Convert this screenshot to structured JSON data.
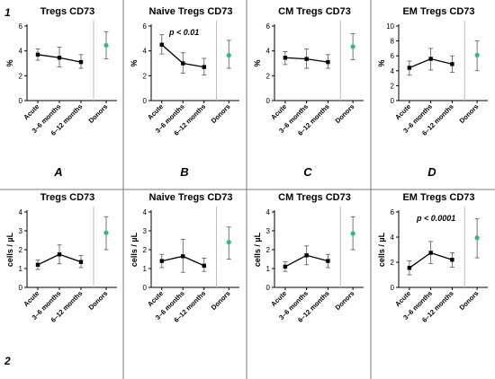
{
  "row_labels": [
    "1",
    "2"
  ],
  "col_labels": [
    "A",
    "B",
    "C",
    "D"
  ],
  "colors": {
    "series": "#000000",
    "donors": "#2fb88a",
    "divider": "#bdbdbd",
    "separator": "#7a7a7a"
  },
  "chart_data": [
    {
      "type": "scatter",
      "title": "Tregs CD73",
      "ylabel": "%",
      "ylim": [
        0,
        6
      ],
      "yticks": [
        0,
        2,
        4,
        6
      ],
      "categories": [
        "Acute",
        "3–6 months",
        "6–12 months",
        "Donors"
      ],
      "series": [
        {
          "values": [
            3.7,
            3.45,
            3.1
          ],
          "err_low": [
            3.25,
            2.7,
            2.6
          ],
          "err_high": [
            4.15,
            4.3,
            3.7
          ]
        },
        {
          "values": [
            4.45
          ],
          "err_low": [
            3.35
          ],
          "err_high": [
            5.55
          ]
        }
      ],
      "annotation": ""
    },
    {
      "type": "scatter",
      "title": "Naive Tregs CD73",
      "ylabel": "%",
      "ylim": [
        0,
        6
      ],
      "yticks": [
        0,
        2,
        4,
        6
      ],
      "categories": [
        "Acute",
        "3–6 months",
        "6–12 months",
        "Donors"
      ],
      "series": [
        {
          "values": [
            4.5,
            3.0,
            2.7
          ],
          "err_low": [
            3.75,
            2.2,
            2.05
          ],
          "err_high": [
            5.3,
            3.85,
            3.4
          ]
        },
        {
          "values": [
            3.65
          ],
          "err_low": [
            2.6
          ],
          "err_high": [
            4.85
          ]
        }
      ],
      "annotation": "p < 0.01"
    },
    {
      "type": "scatter",
      "title": "CM Tregs CD73",
      "ylabel": "%",
      "ylim": [
        0,
        6
      ],
      "yticks": [
        0,
        2,
        4,
        6
      ],
      "categories": [
        "Acute",
        "3–6 months",
        "6–12 months",
        "Donors"
      ],
      "series": [
        {
          "values": [
            3.45,
            3.35,
            3.1
          ],
          "err_low": [
            2.9,
            2.6,
            2.6
          ],
          "err_high": [
            3.95,
            4.15,
            3.7
          ]
        },
        {
          "values": [
            4.35
          ],
          "err_low": [
            3.3
          ],
          "err_high": [
            5.4
          ]
        }
      ],
      "annotation": ""
    },
    {
      "type": "scatter",
      "title": "EM Tregs CD73",
      "ylabel": "%",
      "ylim": [
        0,
        10
      ],
      "yticks": [
        0,
        2,
        4,
        6,
        8,
        10
      ],
      "categories": [
        "Acute",
        "3–6 months",
        "6–12 months",
        "Donors"
      ],
      "series": [
        {
          "values": [
            4.4,
            5.6,
            4.9
          ],
          "err_low": [
            3.4,
            4.1,
            3.8
          ],
          "err_high": [
            5.3,
            7.0,
            6.0
          ]
        },
        {
          "values": [
            6.1
          ],
          "err_low": [
            4.0
          ],
          "err_high": [
            8.0
          ]
        }
      ],
      "annotation": ""
    },
    {
      "type": "scatter",
      "title": "Tregs CD73",
      "ylabel": "cells / µL",
      "ylim": [
        0,
        4
      ],
      "yticks": [
        0,
        1,
        2,
        3,
        4
      ],
      "categories": [
        "Acute",
        "3–6 months",
        "6–12 months",
        "Donors"
      ],
      "series": [
        {
          "values": [
            1.2,
            1.75,
            1.35
          ],
          "err_low": [
            0.95,
            1.25,
            1.05
          ],
          "err_high": [
            1.45,
            2.25,
            1.7
          ]
        },
        {
          "values": [
            2.9
          ],
          "err_low": [
            2.0
          ],
          "err_high": [
            3.75
          ]
        }
      ],
      "annotation": ""
    },
    {
      "type": "scatter",
      "title": "Naive Tregs CD73",
      "ylabel": "cells / µL",
      "ylim": [
        0,
        4
      ],
      "yticks": [
        0,
        1,
        2,
        3,
        4
      ],
      "categories": [
        "Acute",
        "3–6 months",
        "6–12 months",
        "Donors"
      ],
      "series": [
        {
          "values": [
            1.4,
            1.65,
            1.15
          ],
          "err_low": [
            1.05,
            0.8,
            0.85
          ],
          "err_high": [
            1.75,
            2.55,
            1.55
          ]
        },
        {
          "values": [
            2.4
          ],
          "err_low": [
            1.5
          ],
          "err_high": [
            3.2
          ]
        }
      ],
      "annotation": ""
    },
    {
      "type": "scatter",
      "title": "CM Tregs CD73",
      "ylabel": "cells / µL",
      "ylim": [
        0,
        4
      ],
      "yticks": [
        0,
        1,
        2,
        3,
        4
      ],
      "categories": [
        "Acute",
        "3–6 months",
        "6–12 months",
        "Donors"
      ],
      "series": [
        {
          "values": [
            1.1,
            1.7,
            1.4
          ],
          "err_low": [
            0.85,
            1.2,
            1.05
          ],
          "err_high": [
            1.35,
            2.2,
            1.75
          ]
        },
        {
          "values": [
            2.85
          ],
          "err_low": [
            2.0
          ],
          "err_high": [
            3.75
          ]
        }
      ],
      "annotation": ""
    },
    {
      "type": "scatter",
      "title": "EM Tregs CD73",
      "ylabel": "cells / µL",
      "ylim": [
        0,
        6
      ],
      "yticks": [
        0,
        2,
        4,
        6
      ],
      "categories": [
        "Acute",
        "3–6 months",
        "6–12 months",
        "Donors"
      ],
      "series": [
        {
          "values": [
            1.55,
            2.75,
            2.2
          ],
          "err_low": [
            1.0,
            1.9,
            1.6
          ],
          "err_high": [
            2.1,
            3.65,
            2.75
          ]
        },
        {
          "values": [
            3.95
          ],
          "err_low": [
            2.35
          ],
          "err_high": [
            5.45
          ]
        }
      ],
      "annotation": "p < 0.0001"
    }
  ]
}
